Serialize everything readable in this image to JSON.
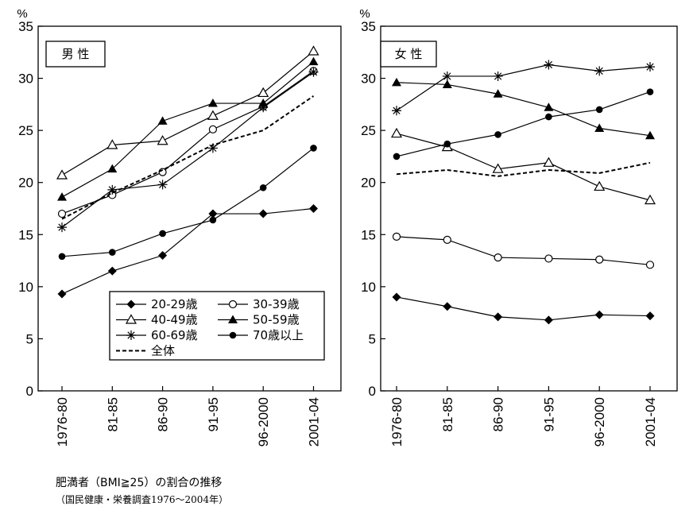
{
  "chart_data": [
    {
      "type": "line",
      "title": "男 性",
      "ylabel": "%",
      "ylim": [
        0,
        35
      ],
      "yticks": [
        0,
        5,
        10,
        15,
        20,
        25,
        30,
        35
      ],
      "categories": [
        "1976-80",
        "81-85",
        "86-90",
        "91-95",
        "96-2000",
        "2001-04"
      ],
      "series": [
        {
          "name": "20-29歳",
          "marker": "filled-diamond",
          "values": [
            9.3,
            11.5,
            13.0,
            17.0,
            17.0,
            17.5
          ]
        },
        {
          "name": "30-39歳",
          "marker": "open-circle",
          "values": [
            17.0,
            18.8,
            21.0,
            25.1,
            27.3,
            30.7
          ]
        },
        {
          "name": "40-49歳",
          "marker": "open-triangle",
          "values": [
            20.7,
            23.6,
            24.0,
            26.4,
            28.6,
            32.6
          ]
        },
        {
          "name": "50-59歳",
          "marker": "filled-triangle",
          "values": [
            18.6,
            21.3,
            25.9,
            27.6,
            27.6,
            31.6
          ]
        },
        {
          "name": "60-69歳",
          "marker": "asterisk",
          "values": [
            15.7,
            19.3,
            19.8,
            23.3,
            27.2,
            30.6
          ]
        },
        {
          "name": "70歳以上",
          "marker": "filled-circle",
          "values": [
            12.9,
            13.3,
            15.1,
            16.4,
            19.5,
            23.3
          ]
        },
        {
          "name": "全体",
          "marker": "none",
          "dashed": true,
          "values": [
            16.5,
            19.0,
            21.2,
            23.6,
            25.0,
            28.3
          ]
        }
      ],
      "legend_position": "bottom-right"
    },
    {
      "type": "line",
      "title": "女 性",
      "ylabel": "%",
      "ylim": [
        0,
        35
      ],
      "yticks": [
        0,
        5,
        10,
        15,
        20,
        25,
        30,
        35
      ],
      "categories": [
        "1976-80",
        "81-85",
        "86-90",
        "91-95",
        "96-2000",
        "2001-04"
      ],
      "series": [
        {
          "name": "20-29歳",
          "marker": "filled-diamond",
          "values": [
            9.0,
            8.1,
            7.1,
            6.8,
            7.3,
            7.2
          ]
        },
        {
          "name": "30-39歳",
          "marker": "open-circle",
          "values": [
            14.8,
            14.5,
            12.8,
            12.7,
            12.6,
            12.1
          ]
        },
        {
          "name": "40-49歳",
          "marker": "open-triangle",
          "values": [
            24.7,
            23.4,
            21.3,
            21.9,
            19.6,
            18.3
          ]
        },
        {
          "name": "50-59歳",
          "marker": "filled-triangle",
          "values": [
            29.6,
            29.4,
            28.5,
            27.2,
            25.2,
            24.5
          ]
        },
        {
          "name": "60-69歳",
          "marker": "asterisk",
          "values": [
            26.9,
            30.2,
            30.2,
            31.3,
            30.7,
            31.1
          ]
        },
        {
          "name": "70歳以上",
          "marker": "filled-circle",
          "values": [
            22.5,
            23.7,
            24.6,
            26.3,
            27.0,
            28.7
          ]
        },
        {
          "name": "全体",
          "marker": "none",
          "dashed": true,
          "values": [
            20.8,
            21.2,
            20.6,
            21.2,
            20.9,
            21.9
          ]
        }
      ]
    }
  ],
  "caption": {
    "line1": "肥満者（BMI≧25）の割合の推移",
    "line2": "（国民健康・栄養調査1976〜2004年）"
  }
}
